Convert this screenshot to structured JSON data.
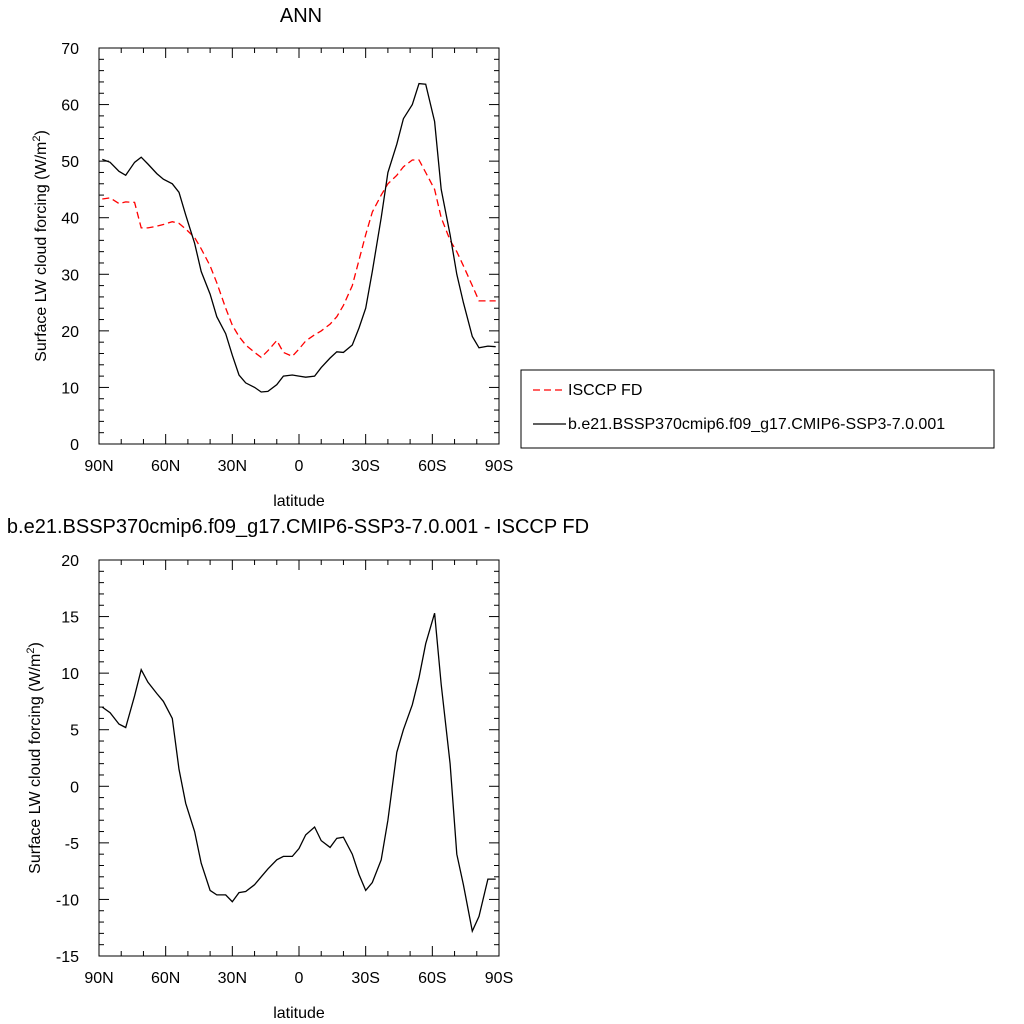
{
  "colors": {
    "model": "#000000",
    "obs": "#ff0000"
  },
  "chart_data": [
    {
      "type": "line",
      "title": "ANN",
      "xlabel": "latitude",
      "ylabel": "Surface LW cloud forcing (W/m",
      "ylabel_sup": "2",
      "ylabel_end": ")",
      "xlim": [
        90,
        -90
      ],
      "ylim": [
        0,
        70
      ],
      "x_ticks": [
        90,
        60,
        30,
        0,
        -30,
        -60,
        -90
      ],
      "x_tick_labels": [
        "90N",
        "60N",
        "30N",
        "0",
        "30S",
        "60S",
        "90S"
      ],
      "y_ticks": [
        0,
        10,
        20,
        30,
        40,
        50,
        60,
        70
      ],
      "y_tick_labels": [
        "0",
        "10",
        "20",
        "30",
        "40",
        "50",
        "60",
        "70"
      ],
      "legend_position": "outside-right",
      "series": [
        {
          "name": "ISCCP FD",
          "style": "dashed",
          "color": "#ff0000",
          "x": [
            88.5,
            85,
            81,
            78,
            74,
            71,
            68,
            64,
            61,
            57,
            54,
            51,
            47,
            44,
            40,
            37,
            33,
            30,
            27,
            24,
            20,
            17,
            14,
            10,
            7,
            3,
            0,
            -3,
            -7,
            -10,
            -14,
            -17,
            -20,
            -24,
            -27,
            -30,
            -33,
            -37,
            -40,
            -44,
            -47,
            -51,
            -54,
            -57,
            -61,
            -64,
            -68,
            -71,
            -74,
            -78,
            -81,
            -85,
            -88.5
          ],
          "y": [
            43.3,
            43.5,
            42.5,
            42.8,
            42.7,
            38.2,
            38.2,
            38.5,
            38.8,
            39.3,
            39,
            38,
            36.5,
            34.5,
            31.5,
            28.5,
            24,
            21,
            19,
            17.5,
            16.2,
            15.3,
            16.5,
            18.3,
            16.2,
            15.5,
            16.8,
            18.2,
            19.3,
            20,
            21.2,
            22.5,
            24.5,
            28,
            32.5,
            37,
            41,
            44,
            46,
            47.5,
            49,
            50.2,
            50.2,
            48,
            45,
            40,
            36,
            34,
            31.5,
            28,
            25.3,
            25.3,
            25.3
          ]
        },
        {
          "name": "b.e21.BSSP370cmip6.f09_g17.CMIP6-SSP3-7.0.001",
          "style": "solid",
          "color": "#000000",
          "x": [
            88.5,
            85,
            81,
            78,
            74,
            71,
            68,
            64,
            61,
            57,
            54,
            51,
            47,
            44,
            40,
            37,
            33,
            30,
            27,
            24,
            20,
            17,
            14,
            10,
            7,
            3,
            0,
            -3,
            -7,
            -10,
            -14,
            -17,
            -20,
            -24,
            -27,
            -30,
            -33,
            -37,
            -40,
            -44,
            -47,
            -51,
            -54,
            -57,
            -61,
            -64,
            -68,
            -71,
            -74,
            -78,
            -81,
            -85,
            -88.5
          ],
          "y": [
            50.3,
            49.8,
            48.2,
            47.5,
            49.8,
            50.7,
            49.5,
            47.8,
            46.8,
            46,
            44.5,
            40.5,
            35.5,
            30.5,
            26.5,
            22.5,
            19.5,
            15.7,
            12.2,
            10.8,
            10,
            9.2,
            9.3,
            10.5,
            12,
            12.2,
            12,
            11.8,
            12,
            13.5,
            15.2,
            16.3,
            16.2,
            17.5,
            20.5,
            24,
            30.5,
            40,
            48,
            53,
            57.5,
            60,
            63.7,
            63.6,
            57,
            45,
            37,
            30,
            25,
            19,
            17,
            17.3,
            17.2
          ]
        }
      ]
    },
    {
      "type": "line",
      "title": "b.e21.BSSP370cmip6.f09_g17.CMIP6-SSP3-7.0.001 - ISCCP FD",
      "xlabel": "latitude",
      "ylabel": "Surface LW cloud forcing (W/m",
      "ylabel_sup": "2",
      "ylabel_end": ")",
      "xlim": [
        90,
        -90
      ],
      "ylim": [
        -15,
        20
      ],
      "x_ticks": [
        90,
        60,
        30,
        0,
        -30,
        -60,
        -90
      ],
      "x_tick_labels": [
        "90N",
        "60N",
        "30N",
        "0",
        "30S",
        "60S",
        "90S"
      ],
      "y_ticks": [
        -15,
        -10,
        -5,
        0,
        5,
        10,
        15,
        20
      ],
      "y_tick_labels": [
        "-15",
        "-10",
        "-5",
        "0",
        "5",
        "10",
        "15",
        "20"
      ],
      "series": [
        {
          "style": "solid",
          "color": "#000000",
          "x": [
            88.5,
            85,
            81,
            78,
            74,
            71,
            68,
            64,
            61,
            57,
            54,
            51,
            47,
            44,
            40,
            37,
            33,
            30,
            27,
            24,
            20,
            17,
            14,
            10,
            7,
            3,
            0,
            -3,
            -7,
            -10,
            -14,
            -17,
            -20,
            -24,
            -27,
            -30,
            -33,
            -37,
            -40,
            -44,
            -47,
            -51,
            -54,
            -57,
            -61,
            -64,
            -68,
            -71,
            -74,
            -78,
            -81,
            -85,
            -88.5
          ],
          "y": [
            7,
            6.5,
            5.5,
            5.2,
            8,
            10.3,
            9.2,
            8.2,
            7.5,
            6,
            1.5,
            -1.5,
            -4,
            -6.8,
            -9.2,
            -9.6,
            -9.6,
            -10.2,
            -9.4,
            -9.3,
            -8.7,
            -8,
            -7.3,
            -6.5,
            -6.2,
            -6.2,
            -5.5,
            -4.3,
            -3.6,
            -4.8,
            -5.4,
            -4.6,
            -4.5,
            -6,
            -7.8,
            -9.2,
            -8.5,
            -6.5,
            -3,
            3,
            5,
            7.2,
            9.6,
            12.6,
            15.3,
            9,
            2,
            -6,
            -8.7,
            -12.8,
            -11.5,
            -8.2,
            -8.2
          ]
        }
      ]
    }
  ]
}
